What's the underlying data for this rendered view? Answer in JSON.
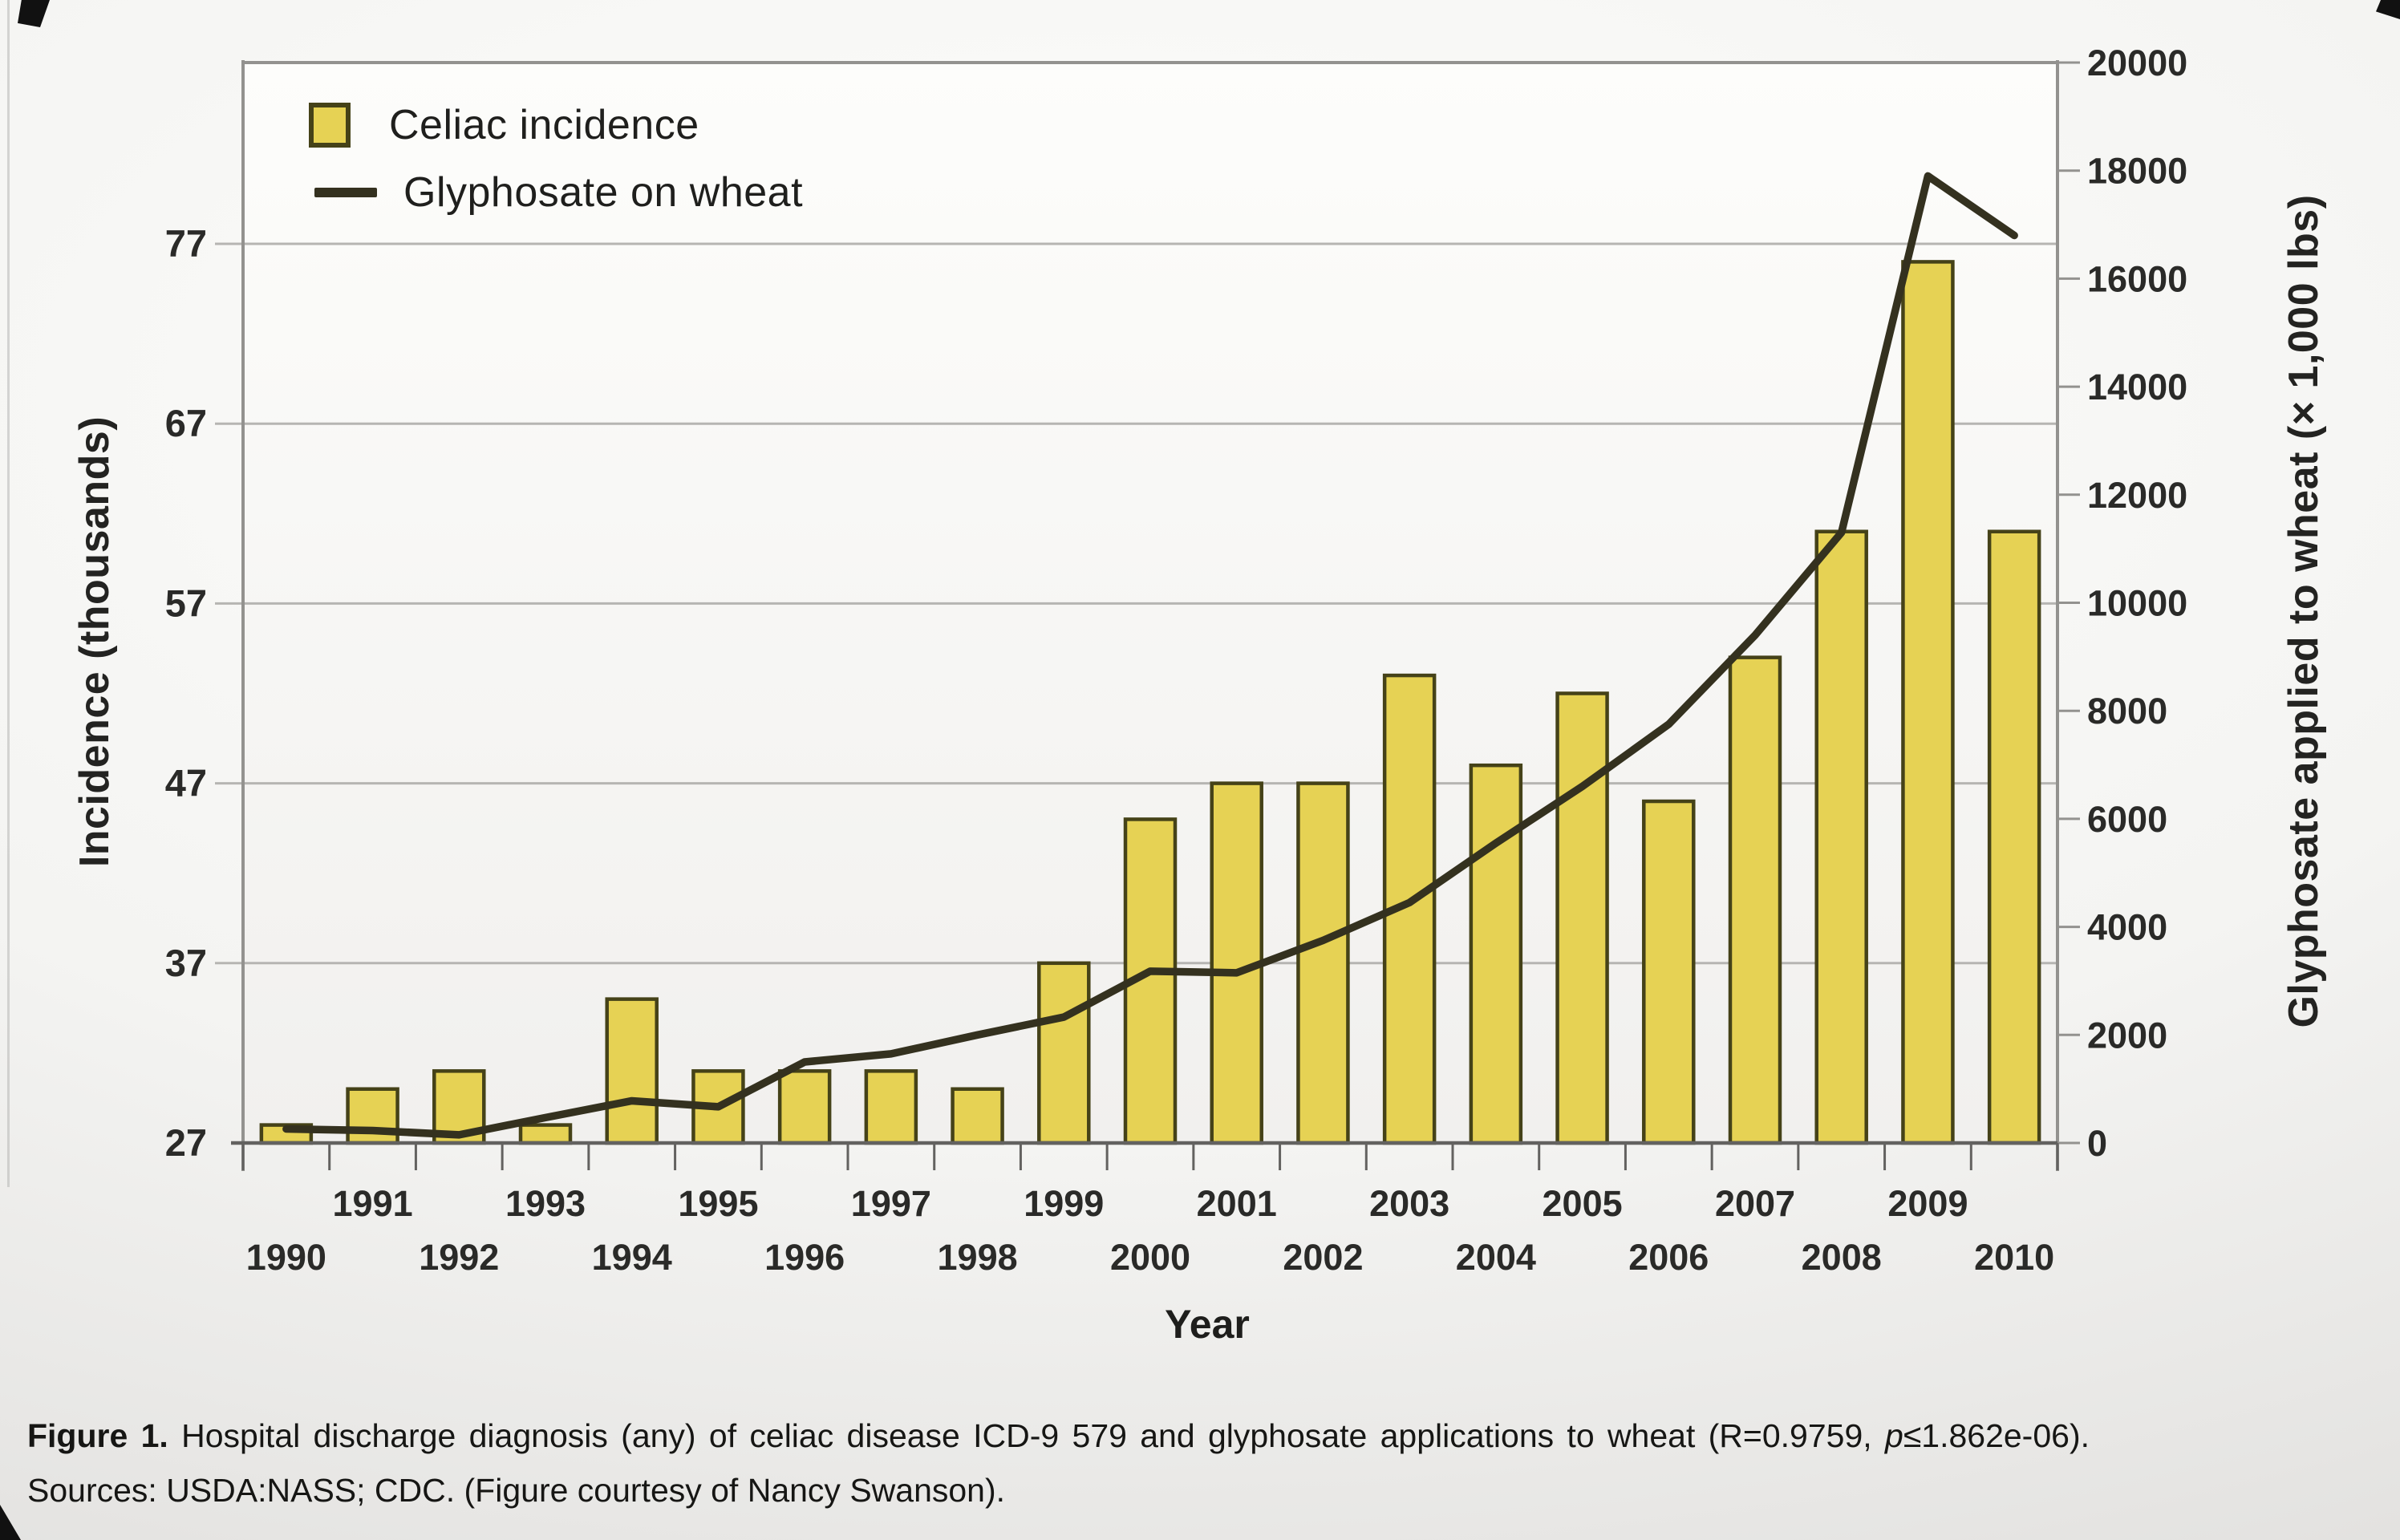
{
  "figure": {
    "legend": {
      "celiac": {
        "label": "Celiac incidence"
      },
      "glyphosate": {
        "label": "Glyphosate on wheat"
      }
    },
    "left_axis_title": "Incidence (thousands)",
    "right_axis_title": "Glyphosate applied to wheat (× 1,000 lbs)",
    "x_axis_title": "Year"
  },
  "caption": {
    "figure_label": "Figure 1.",
    "body": " Hospital discharge diagnosis (any) of celiac disease ICD-9 579 and glyphosate applications to wheat (R=0.9759, ",
    "p_var": "p",
    "tail": "≤1.862e-06).",
    "sources": "Sources: USDA:NASS; CDC. (Figure courtesy of Nancy Swanson)."
  },
  "chart_data": {
    "type": "bar+line",
    "title": "",
    "categories": [
      "1990",
      "1991",
      "1992",
      "1993",
      "1994",
      "1995",
      "1996",
      "1997",
      "1998",
      "1999",
      "2000",
      "2001",
      "2002",
      "2003",
      "2004",
      "2005",
      "2006",
      "2007",
      "2008",
      "2009",
      "2010"
    ],
    "series": [
      {
        "name": "Celiac incidence",
        "type": "bar",
        "axis": "left",
        "values": [
          28,
          30,
          31,
          28,
          35,
          31,
          31,
          31,
          30,
          37,
          45,
          47,
          47,
          53,
          48,
          52,
          46,
          54,
          61,
          76,
          61
        ]
      },
      {
        "name": "Glyphosate on wheat",
        "type": "line",
        "axis": "right",
        "values": [
          260,
          230,
          150,
          470,
          780,
          670,
          1500,
          1650,
          2000,
          2330,
          3180,
          3150,
          3750,
          4450,
          5550,
          6600,
          7750,
          9400,
          11300,
          17900,
          16800
        ]
      }
    ],
    "xlabel": "Year",
    "left_axis": {
      "title": "Incidence (thousands)",
      "ticks": [
        27,
        37,
        47,
        57,
        67,
        77
      ],
      "range": [
        27,
        87
      ]
    },
    "right_axis": {
      "title": "Glyphosate applied to wheat (× 1,000 lbs)",
      "ticks": [
        0,
        2000,
        4000,
        6000,
        8000,
        10000,
        12000,
        14000,
        16000,
        18000,
        20000
      ],
      "range": [
        0,
        20000
      ]
    },
    "x_axis": {
      "stagger_labels": true
    },
    "grid": "horizontal",
    "legend_position": "top-left-inside",
    "colors": {
      "bar_fill": "#e6d254",
      "bar_border": "#454218",
      "line": "#34311f",
      "grid": "#b6b5b2",
      "frame": "#93928f",
      "axis_dark": "#636260",
      "text": "#2a2a28"
    }
  }
}
